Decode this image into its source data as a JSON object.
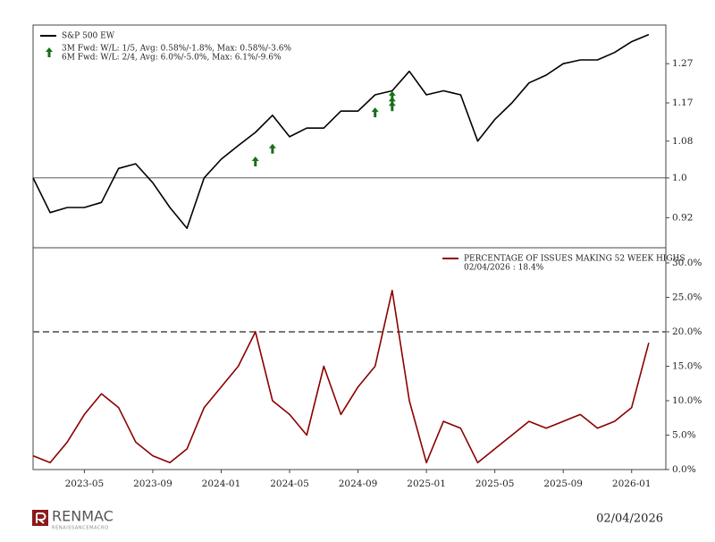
{
  "chart_data": [
    {
      "type": "line",
      "log": true,
      "grid": false,
      "xlim": [
        "2023-02",
        "2026-03"
      ],
      "x": [
        "2023-02",
        "2023-03",
        "2023-04",
        "2023-05",
        "2023-06",
        "2023-07",
        "2023-08",
        "2023-09",
        "2023-10",
        "2023-11",
        "2023-12",
        "2024-01",
        "2024-02",
        "2024-03",
        "2024-04",
        "2024-05",
        "2024-06",
        "2024-07",
        "2024-08",
        "2024-09",
        "2024-10",
        "2024-11",
        "2024-12",
        "2025-01",
        "2025-02",
        "2025-03",
        "2025-04",
        "2025-05",
        "2025-06",
        "2025-07",
        "2025-08",
        "2025-09",
        "2025-10",
        "2025-11",
        "2025-12",
        "2026-01",
        "2026-02"
      ],
      "ylim": [
        0.864,
        1.377
      ],
      "yticks": [
        0.92,
        {
          "value": 1,
          "label": "1.0"
        },
        1.08,
        1.17,
        1.27
      ],
      "hline": {
        "value": 1,
        "style": "solid"
      },
      "series": [
        {
          "name": "S&P 500 EW",
          "color": "#000000",
          "values": [
            1.0,
            0.93,
            0.94,
            0.94,
            0.95,
            1.02,
            1.03,
            0.99,
            0.94,
            0.9,
            1.0,
            1.04,
            1.07,
            1.1,
            1.14,
            1.09,
            1.11,
            1.11,
            1.15,
            1.15,
            1.19,
            1.2,
            1.25,
            1.19,
            1.2,
            1.19,
            1.08,
            1.13,
            1.17,
            1.22,
            1.24,
            1.27,
            1.28,
            1.28,
            1.3,
            1.33,
            1.35
          ]
        }
      ],
      "signals": {
        "labels": [
          "3M Fwd: W/L: 1/5, Avg: 0.58%/-1.8%, Max: 0.58%/-3.6%",
          "6M Fwd: W/L: 2/4, Avg: 6.0%/-5.0%, Max: 6.1%/-9.6%"
        ],
        "color": "#1a6e1a",
        "x": [
          "2024-03",
          "2024-04",
          "2024-10",
          "2024-11",
          "2024-11",
          "2024-11"
        ],
        "y": [
          1.036,
          1.064,
          1.148,
          1.163,
          1.174,
          1.188
        ]
      }
    },
    {
      "type": "line",
      "log": false,
      "grid": false,
      "xlim": [
        "2023-02",
        "2026-03"
      ],
      "x": [
        "2023-02",
        "2023-03",
        "2023-04",
        "2023-05",
        "2023-06",
        "2023-07",
        "2023-08",
        "2023-09",
        "2023-10",
        "2023-11",
        "2023-12",
        "2024-01",
        "2024-02",
        "2024-03",
        "2024-04",
        "2024-05",
        "2024-06",
        "2024-07",
        "2024-08",
        "2024-09",
        "2024-10",
        "2024-11",
        "2024-12",
        "2025-01",
        "2025-02",
        "2025-03",
        "2025-04",
        "2025-05",
        "2025-06",
        "2025-07",
        "2025-08",
        "2025-09",
        "2025-10",
        "2025-11",
        "2025-12",
        "2026-01",
        "2026-02"
      ],
      "xticks": [
        "2023-05",
        "2023-09",
        "2024-01",
        "2024-05",
        "2024-09",
        "2025-01",
        "2025-05",
        "2025-09",
        "2026-01"
      ],
      "ylim": [
        0,
        32.2
      ],
      "yticks": [
        {
          "value": 0,
          "label": "0.0%"
        },
        {
          "value": 5,
          "label": "5.0%"
        },
        {
          "value": 10,
          "label": "10.0%"
        },
        {
          "value": 15,
          "label": "15.0%"
        },
        {
          "value": 20,
          "label": "20.0%"
        },
        {
          "value": 25,
          "label": "25.0%"
        },
        {
          "value": 30,
          "label": "30.0%"
        }
      ],
      "hline": {
        "value": 20,
        "style": "dashed"
      },
      "subtitle": "02/04/2026 : 18.4%",
      "series": [
        {
          "name": "PERCENTAGE OF ISSUES MAKING 52 WEEK HIGHS",
          "color": "#8b0000",
          "values": [
            2,
            1,
            4,
            8,
            11,
            9,
            4,
            2,
            1,
            3,
            9,
            12,
            15,
            20,
            10,
            8,
            5,
            15,
            8,
            12,
            15,
            26,
            10,
            1,
            7,
            6,
            1,
            3,
            5,
            7,
            6,
            7,
            8,
            6,
            7,
            9,
            18.4
          ]
        }
      ]
    }
  ],
  "footer": {
    "brand": "RENMAC",
    "tagline": "RENAISSANCEMACRO",
    "date": "02/04/2026"
  }
}
